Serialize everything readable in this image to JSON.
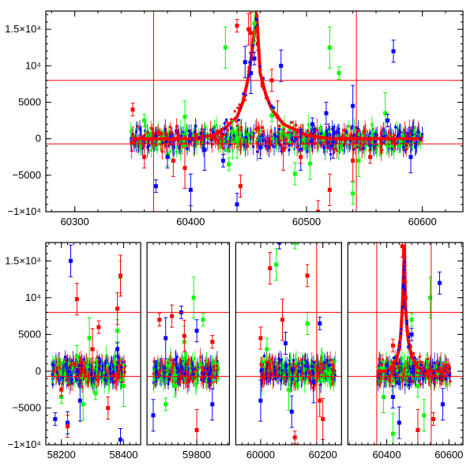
{
  "chart_data": [
    {
      "type": "scatter",
      "title": "",
      "xlabel": "",
      "ylabel": "",
      "xlim": [
        60275,
        60635
      ],
      "ylim": [
        -10000,
        17500
      ],
      "x_ticks": [
        {
          "value": 60300,
          "label": "60300"
        },
        {
          "value": 60400,
          "label": "60400"
        },
        {
          "value": 60500,
          "label": "60500"
        },
        {
          "value": 60600,
          "label": "60600"
        }
      ],
      "y_ticks": [
        {
          "value": -10000,
          "label": "−1×10⁴"
        },
        {
          "value": -5000,
          "label": "−5000"
        },
        {
          "value": 0,
          "label": "0"
        },
        {
          "value": 5000,
          "label": "5000"
        },
        {
          "value": 10000,
          "label": "10⁴"
        },
        {
          "value": 15000,
          "label": "1.5×10⁴"
        }
      ],
      "hlines": [
        8000,
        -700
      ],
      "vlines": [
        60368,
        60543
      ],
      "series": [
        {
          "name": "green",
          "color": "#00ff00",
          "x": [
            60360,
            60380,
            60395,
            60430,
            60433,
            60436,
            60440,
            60455,
            60470,
            60490,
            60503,
            60520,
            60528,
            60540,
            60545,
            60568,
            60580
          ],
          "y": [
            2500,
            -2200,
            3000,
            12500,
            -3500,
            1000,
            -500,
            15800,
            3200,
            -4800,
            -3400,
            12500,
            9000,
            -7500,
            -3000,
            3500,
            -1000
          ]
        },
        {
          "name": "blue",
          "color": "#0000ff",
          "x": [
            60370,
            60380,
            60400,
            60412,
            60428,
            60440,
            60447,
            60452,
            60455,
            60460,
            60478,
            60495,
            60505,
            60517,
            60523,
            60540,
            60570,
            60575,
            60590
          ],
          "y": [
            -6500,
            -2500,
            -7000,
            -1500,
            -3000,
            -9000,
            10500,
            9000,
            11000,
            -1200,
            10000,
            -1500,
            2000,
            3500,
            -500,
            4500,
            2500,
            12000,
            -2500
          ]
        },
        {
          "name": "red",
          "color": "#ff0000",
          "x": [
            60350,
            60360,
            60385,
            60395,
            60440,
            60443,
            60450,
            60452,
            60458,
            60470,
            60475,
            60480,
            60495,
            60510,
            60520,
            60540,
            60555
          ],
          "y": [
            4000,
            -2500,
            -3000,
            -4000,
            15500,
            -6500,
            15000,
            14500,
            13000,
            8000,
            3000,
            -1500,
            -2500,
            -10000,
            -7000,
            -3000,
            -2500
          ]
        }
      ],
      "trend": {
        "name": "red",
        "x": [
          60350,
          60380,
          60400,
          60420,
          60430,
          60440,
          60445,
          60450,
          60453,
          60455,
          60457,
          60460,
          60465,
          60470,
          60480,
          60500,
          60520,
          60550,
          60580,
          60600
        ],
        "y": [
          0,
          0,
          0,
          500,
          1500,
          3000,
          5000,
          8500,
          12000,
          14500,
          17000,
          9000,
          6000,
          4000,
          2000,
          500,
          0,
          0,
          0,
          0
        ]
      }
    },
    {
      "type": "scatter",
      "title": "",
      "xlabel": "",
      "ylabel": "",
      "xlim": [
        58150,
        60645
      ],
      "ylim": [
        -10000,
        17500
      ],
      "x_ticks": [
        {
          "value": 58200,
          "label": "58200"
        },
        {
          "value": 58400,
          "label": "58400"
        },
        {
          "value": 59800,
          "label": "59800"
        },
        {
          "value": 60000,
          "label": "60000"
        },
        {
          "value": 60200,
          "label": "60200"
        },
        {
          "value": 60400,
          "label": "60400"
        },
        {
          "value": 60600,
          "label": "60600"
        }
      ],
      "y_ticks": [
        {
          "value": -10000,
          "label": "−1×10⁴"
        },
        {
          "value": -5000,
          "label": "−5000"
        },
        {
          "value": 0,
          "label": "0"
        },
        {
          "value": 5000,
          "label": "5000"
        },
        {
          "value": 10000,
          "label": "10⁴"
        },
        {
          "value": 15000,
          "label": "1.5×10⁴"
        }
      ],
      "hlines": [
        8000,
        -700
      ],
      "vlines": [
        60180,
        60368,
        60543
      ],
      "segments": [
        {
          "xlim": [
            58150,
            58455
          ],
          "x_ticks": [
            58200,
            58400
          ]
        },
        {
          "xlim": [
            59640,
            59905
          ],
          "x_ticks": [
            59800
          ]
        },
        {
          "xlim": [
            59920,
            60260
          ],
          "x_ticks": [
            60000,
            60200
          ]
        },
        {
          "xlim": [
            60275,
            60645
          ],
          "x_ticks": [
            60400,
            60600
          ]
        }
      ],
      "series": [
        {
          "name": "green",
          "color": "#00ff00",
          "x": [
            58200,
            58250,
            58270,
            58290,
            58310,
            58380,
            58390,
            58400,
            59700,
            59730,
            59760,
            59790,
            59820,
            60020,
            60050,
            60090,
            60110,
            60150,
            60390,
            60420,
            60480,
            60500,
            60520,
            60540
          ],
          "y": [
            -3500,
            2000,
            -4500,
            4500,
            -3000,
            5500,
            12800,
            -2000,
            -4500,
            -2000,
            4000,
            10000,
            7000,
            3000,
            14500,
            -2500,
            17500,
            6500,
            -3500,
            -8500,
            7000,
            -2000,
            -6000,
            10000
          ]
        },
        {
          "name": "blue",
          "color": "#0000ff",
          "x": [
            58180,
            58220,
            58230,
            58260,
            58380,
            58390,
            59660,
            59700,
            59750,
            59800,
            59850,
            60000,
            60060,
            60080,
            60100,
            60170,
            60190,
            60420,
            60440,
            60455,
            60480,
            60570,
            60580
          ],
          "y": [
            -6500,
            -7000,
            15000,
            -4000,
            3000,
            -9300,
            -6000,
            4500,
            8000,
            5500,
            -4500,
            -4000,
            17500,
            3800,
            -5500,
            -1500,
            6500,
            -3500,
            -7000,
            11500,
            5000,
            12000,
            -4500
          ]
        },
        {
          "name": "red",
          "color": "#ff0000",
          "x": [
            58200,
            58220,
            58250,
            58300,
            58320,
            58350,
            58380,
            58390,
            59680,
            59720,
            59760,
            59800,
            59850,
            60000,
            60030,
            60070,
            60110,
            60150,
            60190,
            60200,
            60420,
            60450,
            60460,
            60500,
            60550
          ],
          "y": [
            -2500,
            -7500,
            9800,
            3000,
            6000,
            -5000,
            8500,
            13000,
            7000,
            7500,
            4800,
            -8000,
            4000,
            4500,
            14000,
            7000,
            -9000,
            13000,
            -4000,
            -6500,
            3500,
            17000,
            10000,
            -8000,
            -6500
          ]
        }
      ],
      "trend": {
        "name": "red",
        "x": [
          60370,
          60400,
          60420,
          60430,
          60440,
          60445,
          60450,
          60453,
          60455,
          60457,
          60460,
          60465,
          60470,
          60480,
          60500,
          60520,
          60550,
          60580,
          60600
        ],
        "y": [
          0,
          0,
          500,
          1500,
          3000,
          5000,
          8500,
          12000,
          14500,
          17000,
          9000,
          6000,
          4000,
          2000,
          500,
          0,
          0,
          0,
          0
        ]
      }
    }
  ]
}
